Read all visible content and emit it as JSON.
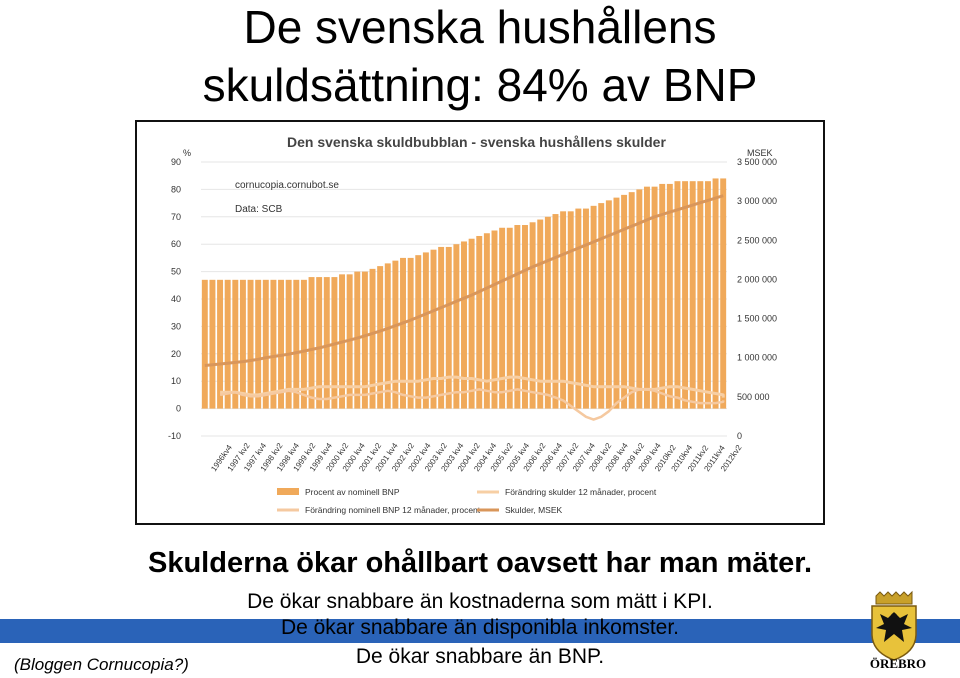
{
  "slide": {
    "title_line1": "De svenska hushållens",
    "title_line2": "skuldsättning: 84% av BNP",
    "headline": "Skulderna ökar ohållbart oavsett har man mäter.",
    "sub1": "De ökar snabbare än kostnaderna som mätt i KPI.",
    "sub2": "De ökar snabbare än disponibla inkomster.",
    "sub3": "De ökar snabbare än BNP.",
    "source": "(Bloggen Cornucopia?)",
    "logo_text": "ÖREBRO",
    "accent_bar_color": "#2a63b8"
  },
  "chart_data": {
    "type": "bar",
    "title": "Den svenska skuldbubblan - svenska hushållens skulder",
    "annotation1": "cornucopia.cornubot.se",
    "annotation2": "Data: SCB",
    "ylabel_left": "%",
    "ylabel_right": "MSEK",
    "ylim_left": [
      -10,
      90
    ],
    "ylim_right": [
      0,
      3500000
    ],
    "yticks_left": [
      -10,
      0,
      10,
      20,
      30,
      40,
      50,
      60,
      70,
      80,
      90
    ],
    "yticks_right": [
      0,
      500000,
      1000000,
      1500000,
      2000000,
      2500000,
      3000000,
      3500000
    ],
    "yticks_right_labels": [
      "0",
      "500 000",
      "1 000 000",
      "1 500 000",
      "2 000 000",
      "2 500 000",
      "3 000 000",
      "3 500 000"
    ],
    "xtick_labels": [
      "1996kv4",
      "1997 kv2",
      "1997 kv4",
      "1998 kv2",
      "1998 kv4",
      "1999 kv2",
      "1999 kv4",
      "2000 kv2",
      "2000 kv4",
      "2001 kv2",
      "2001 kv4",
      "2002 kv2",
      "2002 kv4",
      "2003 kv2",
      "2003 kv4",
      "2004 kv2",
      "2004 kv4",
      "2005 kv2",
      "2005 kv4",
      "2006 kv2",
      "2006 kv4",
      "2007 kv2",
      "2007 kv4",
      "2008 kv2",
      "2008 kv4",
      "2009 kv2",
      "2009 kv4",
      "2010kv2",
      "2010kv4",
      "2011kv2",
      "2011kv4",
      "2012kv2"
    ],
    "legend": [
      "Procent av nominell BNP",
      "Förändring skulder 12 månader, procent",
      "Förändring nominell BNP 12 månader, procent",
      "Skulder, MSEK"
    ],
    "legend_placement": "bottom",
    "colors": {
      "bars": "#f0a95a",
      "debt_change": "#f7cfa4",
      "gdp_change": "#f5c9a0",
      "debt_msek": "#d9965a"
    },
    "series": [
      {
        "name": "Procent av nominell BNP",
        "kind": "bar",
        "axis": "left",
        "values": [
          47,
          47,
          47,
          47,
          47,
          47,
          47,
          47,
          47,
          47,
          47,
          47,
          47,
          47,
          48,
          48,
          48,
          48,
          49,
          49,
          50,
          50,
          51,
          52,
          53,
          54,
          55,
          55,
          56,
          57,
          58,
          59,
          59,
          60,
          61,
          62,
          63,
          64,
          65,
          66,
          66,
          67,
          67,
          68,
          69,
          70,
          71,
          72,
          72,
          73,
          73,
          74,
          75,
          76,
          77,
          78,
          79,
          80,
          81,
          81,
          82,
          82,
          83,
          83,
          83,
          83,
          83,
          84,
          84
        ]
      },
      {
        "name": "Förändring skulder 12 månader, procent",
        "kind": "line",
        "axis": "left",
        "values": [
          6,
          6,
          6,
          5.5,
          5,
          5,
          5.5,
          6,
          6.5,
          7,
          7,
          7,
          7.5,
          8,
          8,
          8,
          8,
          8,
          8,
          8,
          8.5,
          9,
          9.5,
          10,
          10,
          10,
          10,
          10.5,
          11,
          11,
          11.5,
          11.5,
          11,
          11,
          10.5,
          10,
          10.5,
          11,
          11.5,
          11.5,
          11,
          10.5,
          10,
          10,
          10,
          10,
          9.5,
          9,
          8.5,
          8,
          8,
          8,
          8,
          8,
          7.5,
          7,
          7,
          7,
          7.5,
          8,
          8,
          7.5,
          7,
          6.5,
          6,
          5.5,
          5,
          4.5,
          4
        ]
      },
      {
        "name": "Förändring nominell BNP 12 månader, procent",
        "kind": "line",
        "axis": "left",
        "values": [
          5,
          5.5,
          6,
          5,
          4.5,
          4.5,
          5,
          5.5,
          6,
          6.5,
          6,
          5,
          4,
          3.5,
          3.5,
          4,
          4.5,
          5,
          5,
          5,
          5.5,
          6,
          6.5,
          6,
          5,
          4.5,
          4,
          4,
          4.5,
          5,
          5.5,
          6,
          6,
          6.5,
          7,
          6.5,
          6,
          6,
          6.5,
          7,
          6.5,
          6,
          5.5,
          5,
          4,
          3,
          1,
          -1,
          -3,
          -4,
          -3,
          -1,
          2,
          4,
          6,
          7,
          7,
          6.5,
          5.5,
          4.5,
          4,
          3,
          2.5,
          2,
          2,
          2,
          2.5,
          3,
          3
        ]
      },
      {
        "name": "Skulder, MSEK",
        "kind": "line",
        "axis": "right",
        "values": [
          900000,
          910000,
          920000,
          930000,
          940000,
          950000,
          965000,
          980000,
          1000000,
          1015000,
          1030000,
          1045000,
          1065000,
          1085000,
          1105000,
          1125000,
          1150000,
          1175000,
          1200000,
          1225000,
          1250000,
          1280000,
          1310000,
          1340000,
          1375000,
          1410000,
          1445000,
          1480000,
          1520000,
          1560000,
          1600000,
          1640000,
          1680000,
          1720000,
          1760000,
          1800000,
          1845000,
          1890000,
          1935000,
          1980000,
          2025000,
          2070000,
          2115000,
          2160000,
          2200000,
          2240000,
          2280000,
          2320000,
          2360000,
          2400000,
          2440000,
          2480000,
          2520000,
          2560000,
          2600000,
          2640000,
          2680000,
          2720000,
          2760000,
          2800000,
          2830000,
          2860000,
          2890000,
          2920000,
          2950000,
          2980000,
          3010000,
          3040000,
          3070000
        ]
      }
    ]
  }
}
